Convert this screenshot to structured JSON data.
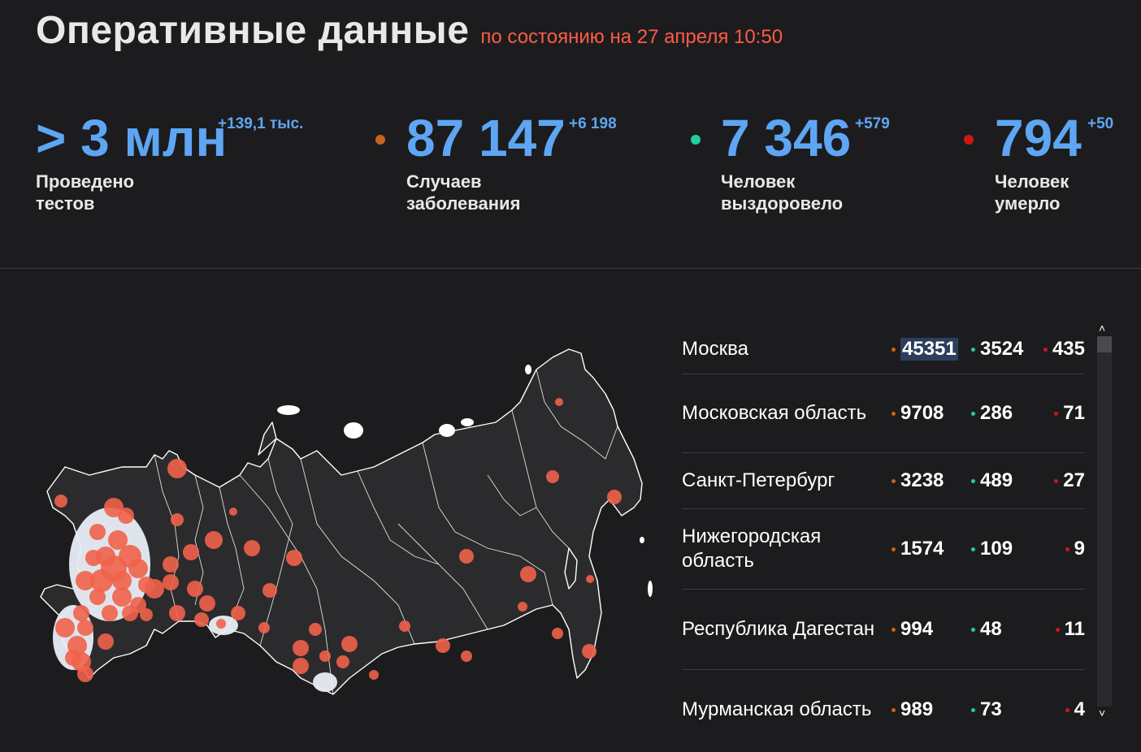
{
  "header": {
    "title": "Оперативные данные",
    "subtitle": "по состоянию на 27 апреля 10:50"
  },
  "stats": [
    {
      "value": "> 3 млн",
      "delta": "+139,1 тыс.",
      "label": "Проведено\nтестов",
      "dot_color": ""
    },
    {
      "value": "87 147",
      "delta": "+6 198",
      "label": "Случаев\nзаболевания",
      "dot_color": "#c8621e"
    },
    {
      "value": "7 346",
      "delta": "+579",
      "label": "Человек\nвыздоровело",
      "dot_color": "#1fcfa0"
    },
    {
      "value": "794",
      "delta": "+50",
      "label": "Человек\nумерло",
      "dot_color": "#d21414"
    }
  ],
  "colors": {
    "accent_blue": "#5ea6f4",
    "subtitle_red": "#ff5c45",
    "cases_dot": "#c8621e",
    "recovered_dot": "#1fcfa0",
    "deaths_dot": "#d21414",
    "map_marker": "#f0624a"
  },
  "regions": [
    {
      "name": "Москва",
      "cases": "45351",
      "recovered": "3524",
      "deaths": "435"
    },
    {
      "name": "Московская область",
      "cases": "9708",
      "recovered": "286",
      "deaths": "71"
    },
    {
      "name": "Санкт-Петербург",
      "cases": "3238",
      "recovered": "489",
      "deaths": "27"
    },
    {
      "name": "Нижегородская область",
      "cases": "1574",
      "recovered": "109",
      "deaths": "9"
    },
    {
      "name": "Республика Дагестан",
      "cases": "994",
      "recovered": "48",
      "deaths": "11"
    },
    {
      "name": "Мурманская область",
      "cases": "989",
      "recovered": "73",
      "deaths": "4"
    }
  ],
  "icons": {
    "scroll_up": "chevron-up-icon",
    "scroll_down": "chevron-down-icon"
  }
}
